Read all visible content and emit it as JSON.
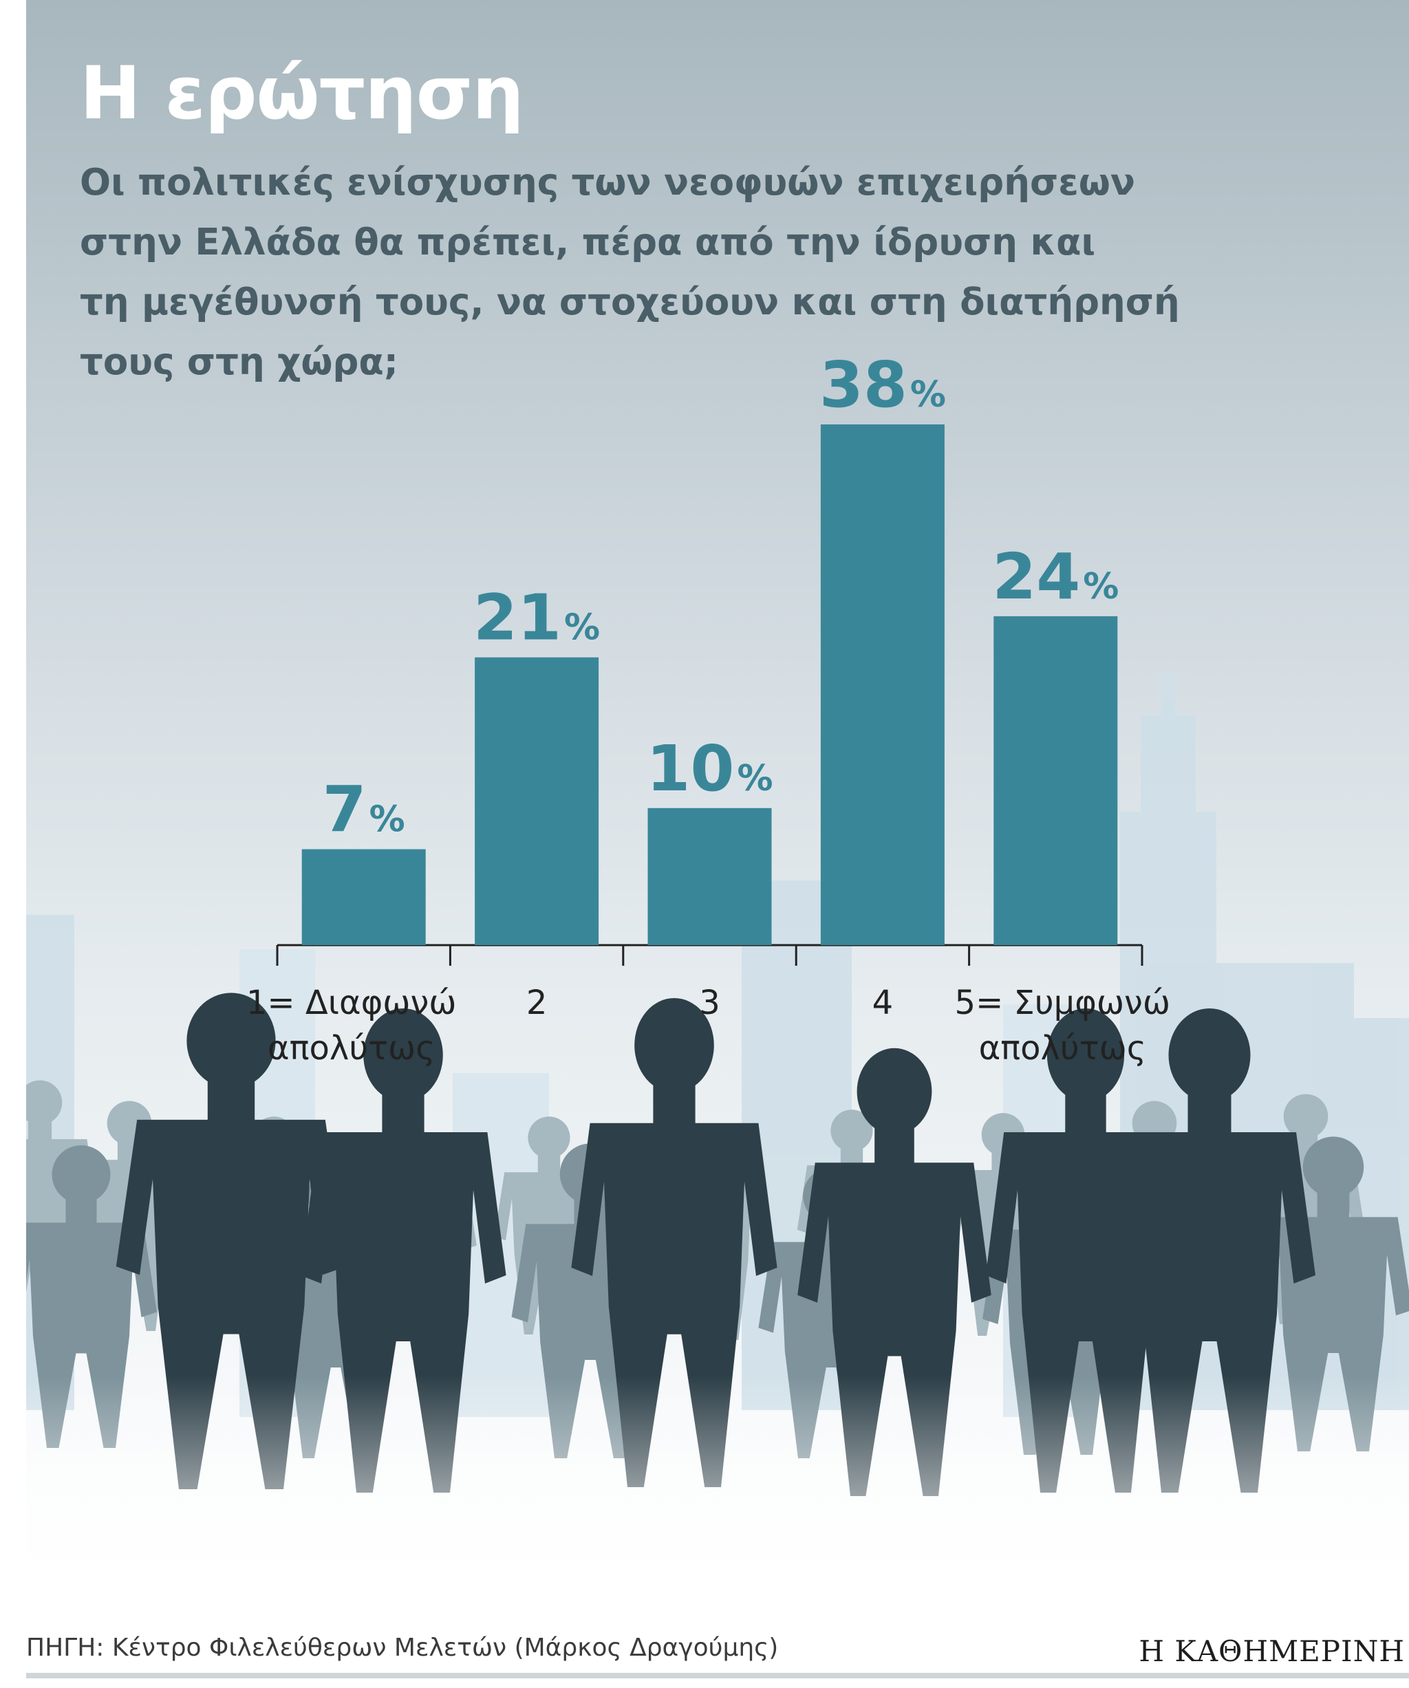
{
  "title": "Η ερώτηση",
  "question_lines": [
    "Οι πολιτικές ενίσχυσης των νεοφυών επιχειρήσεων",
    "στην Ελλάδα θα πρέπει, πέρα από την ίδρυση και",
    "τη μεγέθυνσή τους, να στοχεύουν και στη διατήρησή",
    "τους στη χώρα;"
  ],
  "chart_data": {
    "type": "bar",
    "categories": [
      [
        "1= Διαφωνώ",
        "απολύτως"
      ],
      [
        "2"
      ],
      [
        "3"
      ],
      [
        "4"
      ],
      [
        "5= Συμφωνώ",
        "απολύτως"
      ]
    ],
    "values": [
      7,
      21,
      10,
      38,
      24
    ],
    "value_labels": [
      "7",
      "21",
      "10",
      "38",
      "24"
    ],
    "unit": "%",
    "ylim": [
      0,
      38
    ],
    "grid": false,
    "legend": "none",
    "bar_color": "#3a8699",
    "label_color": "#3a8699"
  },
  "source": "ΠΗΓΗ: Κέντρο Φιλελεύθερων Μελετών (Μάρκος Δραγούμης)",
  "publisher": "Η ΚΑΘΗΜΕΡΙΝΗ"
}
